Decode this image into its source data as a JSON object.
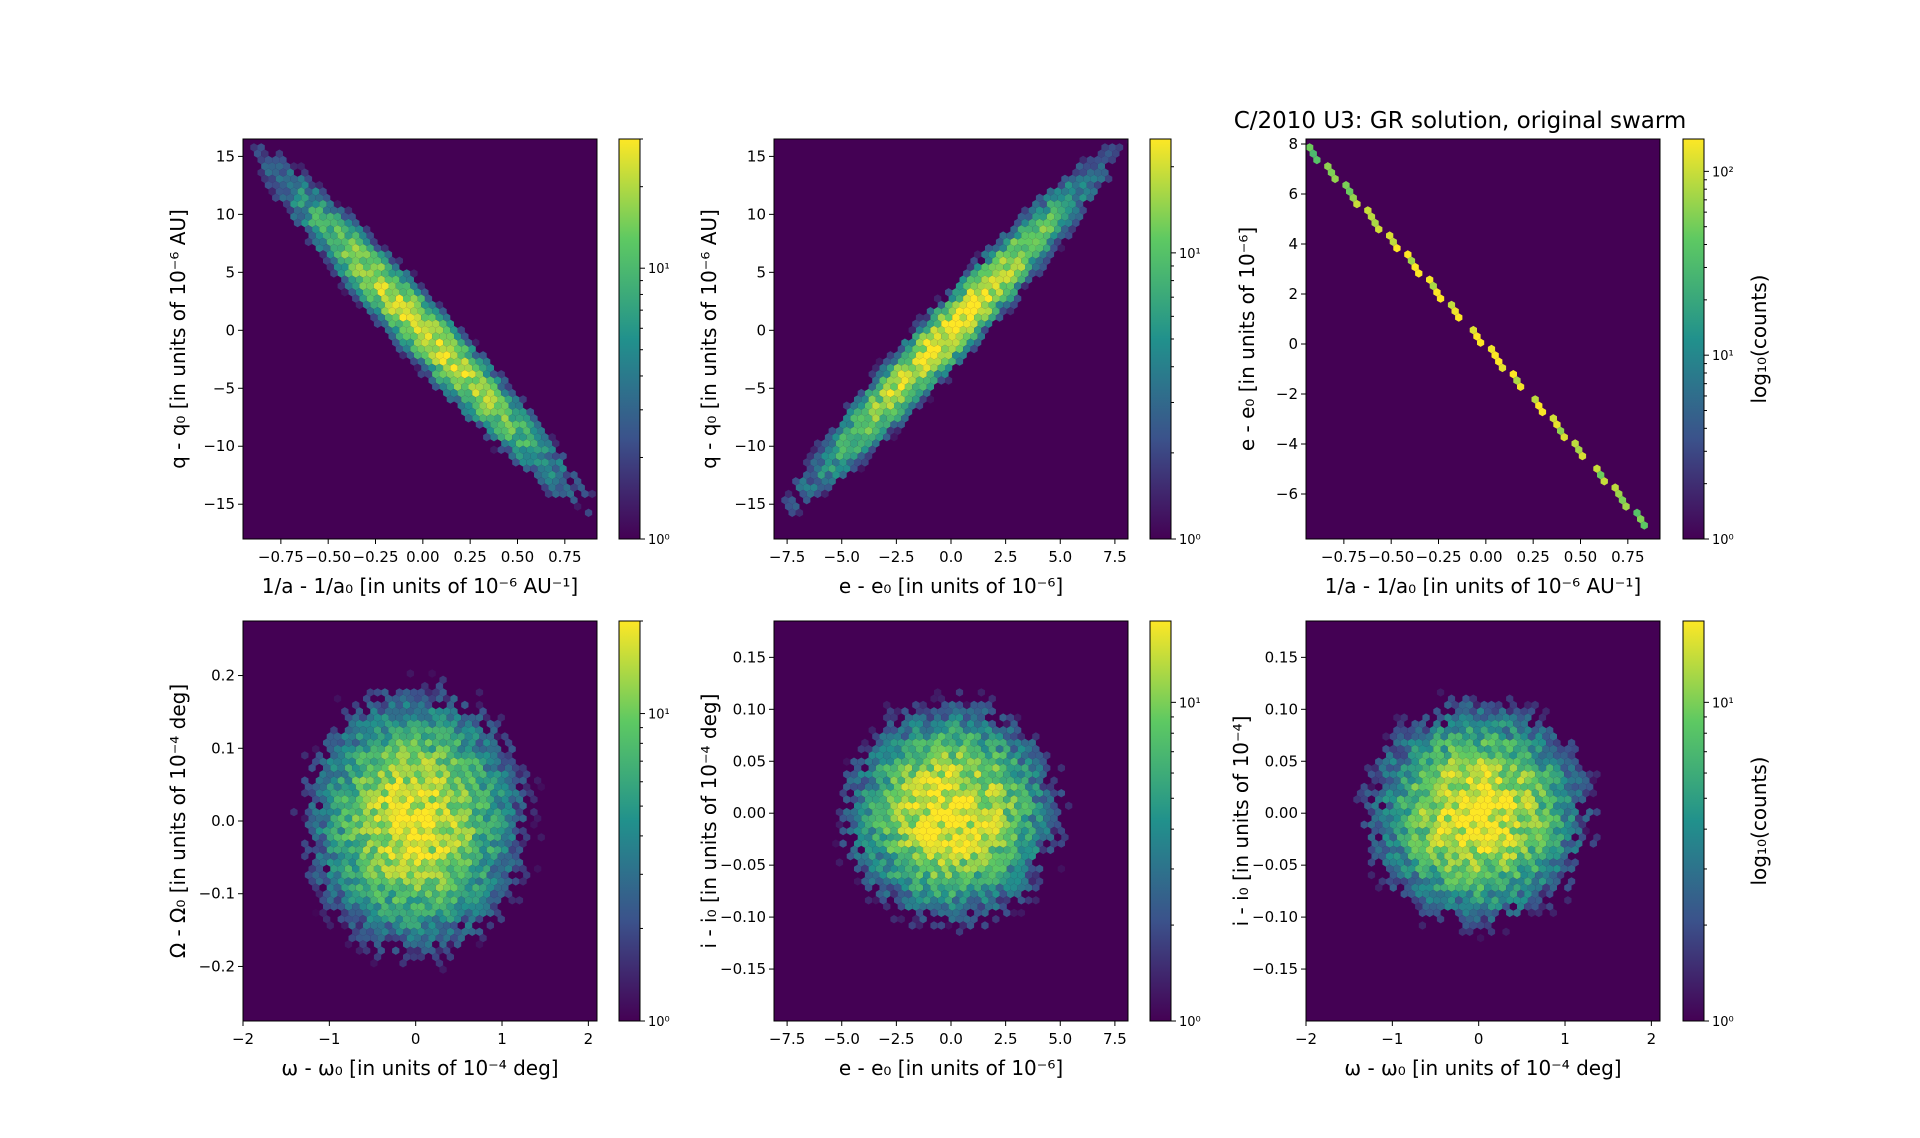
{
  "figure_title": "C/2010 U3:  GR solution, original swarm",
  "colormap": [
    "#440154",
    "#3b528b",
    "#21918c",
    "#5ec962",
    "#fde725"
  ],
  "chart_data": [
    {
      "type": "heatmap",
      "subtype": "hexbin",
      "xlabel": "1/a - 1/a₀ [in units of 10⁻⁶ AU⁻¹]",
      "ylabel": "q - q₀ [in units of 10⁻⁶ AU]",
      "xlim": [
        -0.95,
        0.92
      ],
      "ylim": [
        -18,
        16.5
      ],
      "xticks": [
        -0.75,
        -0.5,
        -0.25,
        0.0,
        0.25,
        0.5,
        0.75
      ],
      "xtick_labels": [
        "−0.75",
        "−0.50",
        "−0.25",
        "0.00",
        "0.25",
        "0.50",
        "0.75"
      ],
      "yticks": [
        -15,
        -10,
        -5,
        0,
        5,
        10,
        15
      ],
      "ytick_labels": [
        "−15",
        "−10",
        "−5",
        "0",
        "5",
        "10",
        "15"
      ],
      "distribution": {
        "shape": "correlated",
        "correlation": -0.97,
        "x_center": 0.0,
        "x_sigma": 0.27,
        "y_center": 0.0,
        "y_sigma": 4.8,
        "peak_count": 25
      },
      "colorbar": {
        "scale": "log",
        "range": [
          1,
          30
        ],
        "ticks": [
          1,
          10
        ],
        "tick_labels": [
          "10⁰",
          "10¹"
        ],
        "label": ""
      }
    },
    {
      "type": "heatmap",
      "subtype": "hexbin",
      "xlabel": "e - e₀ [in units of 10⁻⁶]",
      "ylabel": "q - q₀ [in units of 10⁻⁶ AU]",
      "xlim": [
        -8.1,
        8.1
      ],
      "ylim": [
        -18,
        16.5
      ],
      "xticks": [
        -7.5,
        -5.0,
        -2.5,
        0.0,
        2.5,
        5.0,
        7.5
      ],
      "xtick_labels": [
        "−7.5",
        "−5.0",
        "−2.5",
        "0.0",
        "2.5",
        "5.0",
        "7.5"
      ],
      "yticks": [
        -15,
        -10,
        -5,
        0,
        5,
        10,
        15
      ],
      "ytick_labels": [
        "−15",
        "−10",
        "−5",
        "0",
        "5",
        "10",
        "15"
      ],
      "distribution": {
        "shape": "correlated",
        "correlation": 0.97,
        "x_center": 0.0,
        "x_sigma": 2.3,
        "y_center": 0.0,
        "y_sigma": 4.8,
        "peak_count": 25
      },
      "colorbar": {
        "scale": "log",
        "range": [
          1,
          25
        ],
        "ticks": [
          1,
          10
        ],
        "tick_labels": [
          "10⁰",
          "10¹"
        ],
        "label": ""
      }
    },
    {
      "type": "heatmap",
      "subtype": "hexbin",
      "xlabel": "1/a - 1/a₀ [in units of 10⁻⁶ AU⁻¹]",
      "ylabel": "e - e₀ [in units of 10⁻⁶]",
      "xlim": [
        -0.95,
        0.92
      ],
      "ylim": [
        -7.8,
        8.2
      ],
      "xticks": [
        -0.75,
        -0.5,
        -0.25,
        0.0,
        0.25,
        0.5,
        0.75
      ],
      "xtick_labels": [
        "−0.75",
        "−0.50",
        "−0.25",
        "0.00",
        "0.25",
        "0.50",
        "0.75"
      ],
      "yticks": [
        -6,
        -4,
        -2,
        0,
        2,
        4,
        6,
        8
      ],
      "ytick_labels": [
        "−6",
        "−4",
        "−2",
        "0",
        "2",
        "4",
        "6",
        "8"
      ],
      "distribution": {
        "shape": "line",
        "line": {
          "x_from": -0.95,
          "y_from": 8.0,
          "x_to": 0.85,
          "y_to": -7.3
        },
        "peak_count": 150
      },
      "colorbar": {
        "scale": "log",
        "range": [
          1,
          150
        ],
        "ticks": [
          1,
          10,
          100
        ],
        "tick_labels": [
          "10⁰",
          "10¹",
          "10²"
        ],
        "label": "log₁₀(counts)"
      }
    },
    {
      "type": "heatmap",
      "subtype": "hexbin",
      "xlabel": "ω - ω₀ [in units of 10⁻⁴ deg]",
      "ylabel": "Ω - Ω₀ [in units of 10⁻⁴ deg]",
      "xlim": [
        -2.0,
        2.1
      ],
      "ylim": [
        -0.275,
        0.275
      ],
      "xticks": [
        -2,
        -1,
        0,
        1,
        2
      ],
      "xtick_labels": [
        "−2",
        "−1",
        "0",
        "1",
        "2"
      ],
      "yticks": [
        -0.2,
        -0.1,
        0.0,
        0.1,
        0.2
      ],
      "ytick_labels": [
        "−0.2",
        "−0.1",
        "0.0",
        "0.1",
        "0.2"
      ],
      "distribution": {
        "shape": "blob",
        "x_center": 0.0,
        "x_sigma": 0.6,
        "y_center": 0.0,
        "y_sigma": 0.085,
        "peak_count": 18
      },
      "colorbar": {
        "scale": "log",
        "range": [
          1,
          20
        ],
        "ticks": [
          1,
          10
        ],
        "tick_labels": [
          "10⁰",
          "10¹"
        ],
        "label": ""
      }
    },
    {
      "type": "heatmap",
      "subtype": "hexbin",
      "xlabel": "e - e₀ [in units of 10⁻⁶]",
      "ylabel": "i - i₀ [in units of 10⁻⁴ deg]",
      "xlim": [
        -8.1,
        8.1
      ],
      "ylim": [
        -0.2,
        0.185
      ],
      "xticks": [
        -7.5,
        -5.0,
        -2.5,
        0.0,
        2.5,
        5.0,
        7.5
      ],
      "xtick_labels": [
        "−7.5",
        "−5.0",
        "−2.5",
        "0.0",
        "2.5",
        "5.0",
        "7.5"
      ],
      "yticks": [
        -0.15,
        -0.1,
        -0.05,
        0.0,
        0.05,
        0.1,
        0.15
      ],
      "ytick_labels": [
        "−0.15",
        "−0.10",
        "−0.05",
        "0.00",
        "0.05",
        "0.10",
        "0.15"
      ],
      "distribution": {
        "shape": "blob",
        "x_center": 0.0,
        "x_sigma": 2.3,
        "y_center": 0.0,
        "y_sigma": 0.05,
        "peak_count": 18
      },
      "colorbar": {
        "scale": "log",
        "range": [
          1,
          18
        ],
        "ticks": [
          1,
          10
        ],
        "tick_labels": [
          "10⁰",
          "10¹"
        ],
        "label": ""
      }
    },
    {
      "type": "heatmap",
      "subtype": "hexbin",
      "xlabel": "ω - ω₀ [in units of 10⁻⁴ deg]",
      "ylabel": "i - i₀ [in units of 10⁻⁴]",
      "xlim": [
        -2.0,
        2.1
      ],
      "ylim": [
        -0.2,
        0.185
      ],
      "xticks": [
        -2,
        -1,
        0,
        1,
        2
      ],
      "xtick_labels": [
        "−2",
        "−1",
        "0",
        "1",
        "2"
      ],
      "yticks": [
        -0.15,
        -0.1,
        -0.05,
        0.0,
        0.05,
        0.1,
        0.15
      ],
      "ytick_labels": [
        "−0.15",
        "−0.10",
        "−0.05",
        "0.00",
        "0.05",
        "0.10",
        "0.15"
      ],
      "distribution": {
        "shape": "blob",
        "x_center": 0.0,
        "x_sigma": 0.6,
        "y_center": 0.0,
        "y_sigma": 0.05,
        "peak_count": 18
      },
      "colorbar": {
        "scale": "log",
        "range": [
          1,
          18
        ],
        "ticks": [
          1,
          10
        ],
        "tick_labels": [
          "10⁰",
          "10¹"
        ],
        "label": "log₁₀(counts)"
      }
    }
  ]
}
